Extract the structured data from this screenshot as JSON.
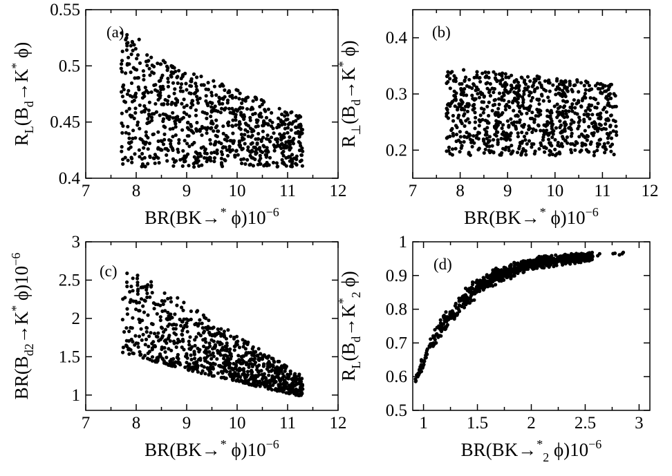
{
  "chart_data": [
    {
      "type": "scatter",
      "panel_label": "(a)",
      "xlabel": {
        "pre": "BR(B",
        "arrow": "→",
        "mid": "K",
        "sup": "*",
        "post": " ϕ)10",
        "exp": "−6"
      },
      "ylabel": {
        "pre": "R",
        "sub1": "L",
        "mid": "(B",
        "sub2": "d",
        "arrow": "→",
        "k": "K",
        "sup": "*",
        "post": " ϕ)"
      },
      "xlim": [
        7,
        12
      ],
      "ylim": [
        0.4,
        0.55
      ],
      "xticks": [
        7,
        8,
        9,
        10,
        11,
        12
      ],
      "yticks": [
        0.4,
        0.45,
        0.5,
        0.55
      ],
      "ytick_labels": [
        "0.4",
        "0.45",
        "0.5",
        "0.55"
      ],
      "distribution": "region_a",
      "n_points": 850
    },
    {
      "type": "scatter",
      "panel_label": "(b)",
      "xlabel": {
        "pre": "BR(B",
        "arrow": "→",
        "mid": "K",
        "sup": "*",
        "post": " ϕ)10",
        "exp": "−6"
      },
      "ylabel": {
        "pre": "R",
        "sub1": "⊥",
        "mid": "(B",
        "sub2": "d",
        "arrow": "→",
        "k": "K",
        "sup": "*",
        "post": " ϕ)"
      },
      "xlim": [
        7,
        12
      ],
      "ylim": [
        0.15,
        0.45
      ],
      "xticks": [
        7,
        8,
        9,
        10,
        11,
        12
      ],
      "yticks": [
        0.2,
        0.3,
        0.4
      ],
      "ytick_labels": [
        "0.2",
        "0.3",
        "0.4"
      ],
      "distribution": "region_b",
      "n_points": 850
    },
    {
      "type": "scatter",
      "panel_label": "(c)",
      "xlabel": {
        "pre": "BR(B",
        "arrow": "→",
        "mid": "K",
        "sup": "*",
        "post": " ϕ)10",
        "exp": "−6"
      },
      "ylabel": {
        "pre": "BR(B",
        "sub1": "d",
        "arrow": "→",
        "k": "K",
        "sup": "*",
        "sub2": "2",
        "post": " ϕ)10",
        "exp": "−6"
      },
      "xlim": [
        7,
        12
      ],
      "ylim": [
        0.8,
        3.0
      ],
      "xticks": [
        7,
        8,
        9,
        10,
        11,
        12
      ],
      "yticks": [
        1,
        1.5,
        2,
        2.5,
        3
      ],
      "ytick_labels": [
        "1",
        "1.5",
        "2",
        "2.5",
        "3"
      ],
      "distribution": "region_c",
      "n_points": 850
    },
    {
      "type": "scatter",
      "panel_label": "(d)",
      "xlabel": {
        "pre": "BR(B",
        "arrow": "→",
        "mid": "K",
        "sup": "*",
        "sub": "2",
        "post": " ϕ)10",
        "exp": "−6"
      },
      "ylabel": {
        "pre": "R",
        "sub1": "L",
        "mid": "(B",
        "sub2": "d",
        "arrow": "→",
        "k": "K",
        "sup": "*",
        "sub3": "2",
        "post": " ϕ)"
      },
      "xlim": [
        0.9,
        3.1
      ],
      "ylim": [
        0.5,
        1.0
      ],
      "xticks": [
        1,
        1.5,
        2,
        2.5,
        3
      ],
      "xtick_labels": [
        "1",
        "1.5",
        "2",
        "2.5",
        "3"
      ],
      "yticks": [
        0.5,
        0.6,
        0.7,
        0.8,
        0.9,
        1.0
      ],
      "ytick_labels": [
        "0.5",
        "0.6",
        "0.7",
        "0.8",
        "0.9",
        "1"
      ],
      "distribution": "region_d",
      "n_points": 850
    }
  ]
}
